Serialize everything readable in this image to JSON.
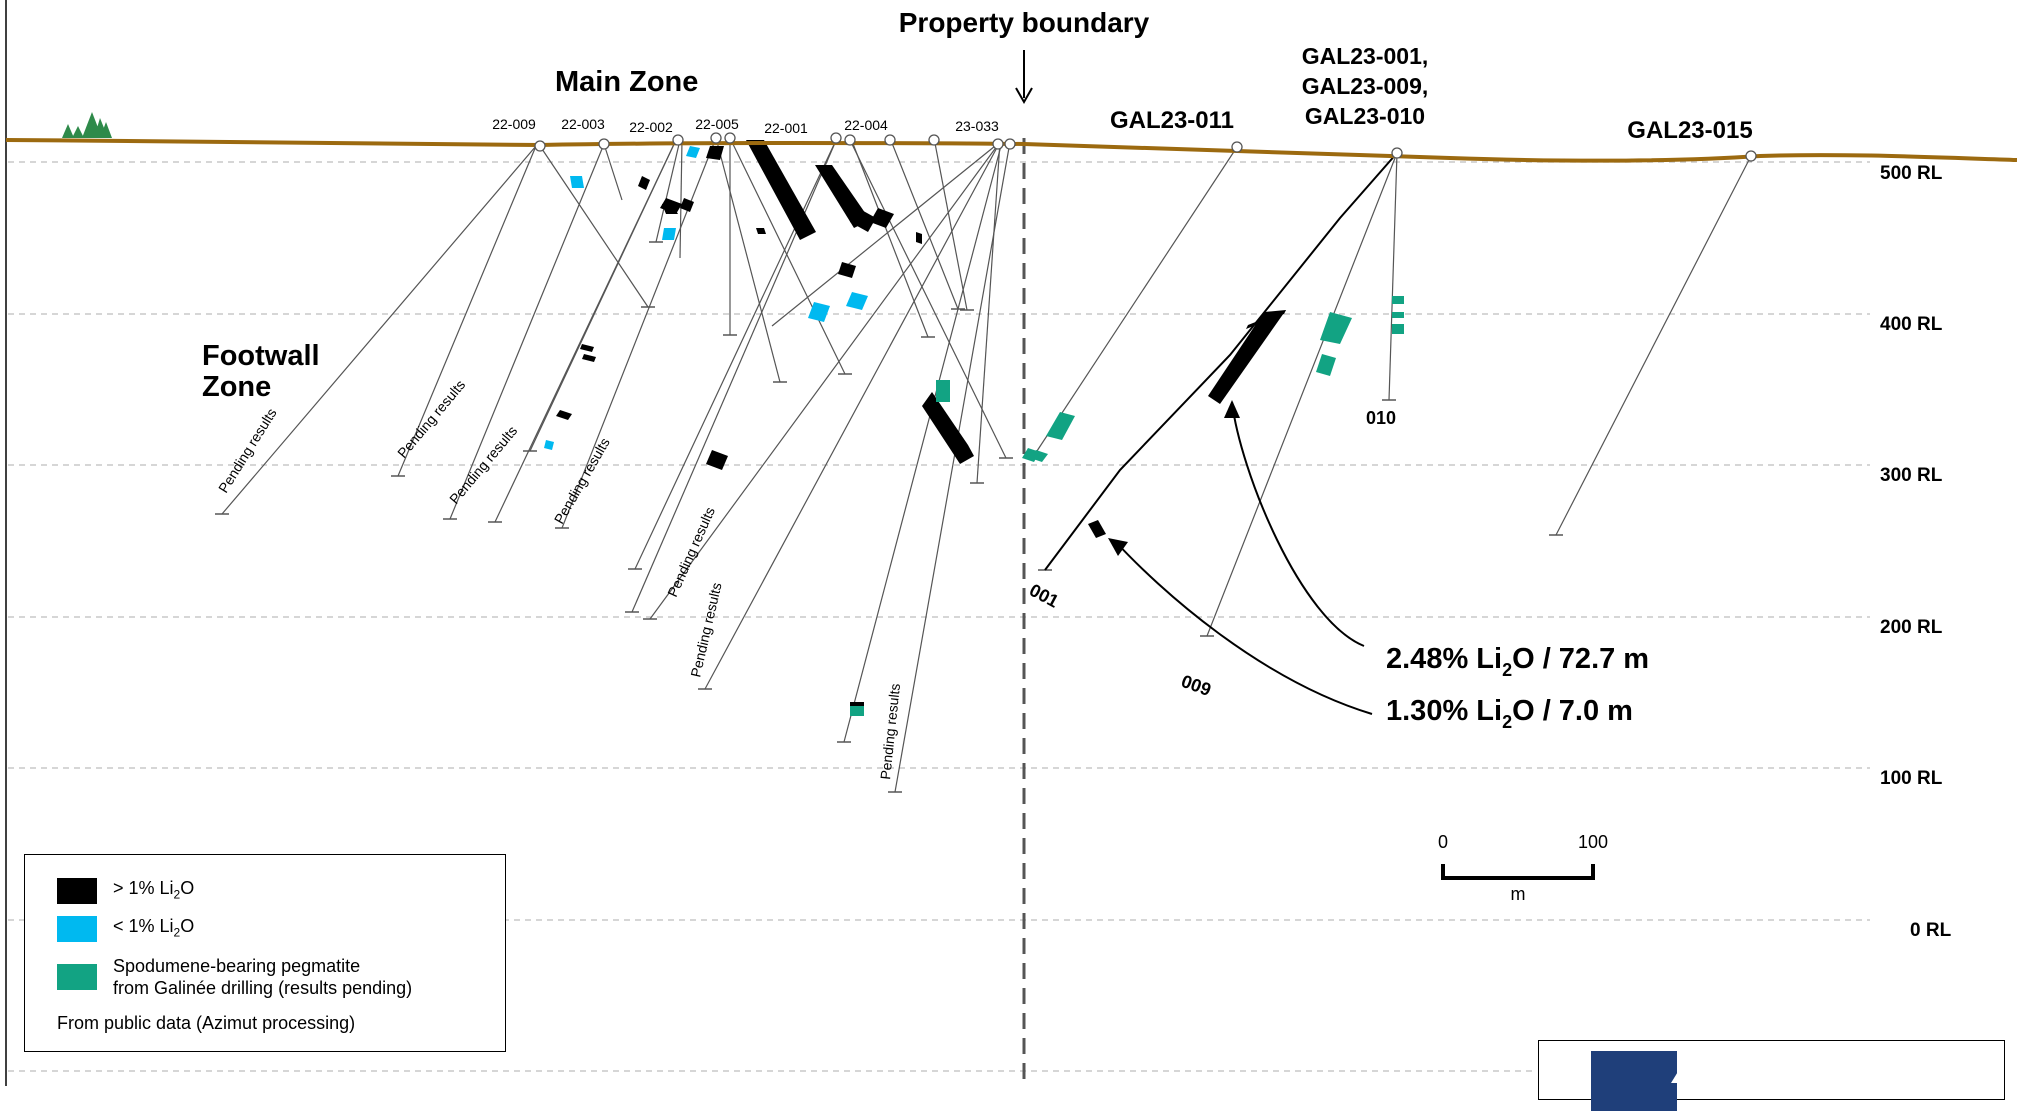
{
  "title": "Property boundary",
  "zones": {
    "main": "Main Zone",
    "footwall_line1": "Footwall",
    "footwall_line2": "Zone"
  },
  "levels": [
    "500 RL",
    "400 RL",
    "300 RL",
    "200 RL",
    "100 RL",
    "0 RL"
  ],
  "collar_labels": [
    "22-009",
    "22-003",
    "22-002",
    "22-005",
    "22-001",
    "22-004",
    "23-033"
  ],
  "galinee_holes": {
    "left": "GAL23-011",
    "group_line1": "GAL23-001,",
    "group_line2": "GAL23-009,",
    "group_line3": "GAL23-010",
    "right": "GAL23-015"
  },
  "end_labels": {
    "h001": "001",
    "h009": "009",
    "h010": "010"
  },
  "pending": "Pending results",
  "intercepts": {
    "first": {
      "grade": "2.48% Li",
      "sub": "2",
      "rest": "O / 72.7 m"
    },
    "second": {
      "grade": "1.30% Li",
      "sub": "2",
      "rest": "O / 7.0 m"
    }
  },
  "scale": {
    "zero": "0",
    "hundred": "100",
    "unit": "m"
  },
  "legend": {
    "items": [
      {
        "pre": "> 1% Li",
        "sub": "2",
        "post": "O",
        "color": "#000000"
      },
      {
        "pre": "< 1% Li",
        "sub": "2",
        "post": "O",
        "color": "#00b9f0"
      },
      {
        "line1": "Spodumene-bearing pegmatite",
        "line2": "from Galinée drilling (results pending)",
        "color": "#12a383"
      }
    ],
    "note": "From public data (Azimut processing)"
  },
  "colors": {
    "topography": "#9c6a10",
    "high_grade": "#000000",
    "low_grade": "#00b9f0",
    "spodumene": "#12a383",
    "tree": "#2e8a4a",
    "gridline": "#bbbbbb",
    "logo": "#1f3f7a"
  },
  "icons": [
    "tree-icon",
    "arrow-down-icon",
    "logo-icon"
  ]
}
